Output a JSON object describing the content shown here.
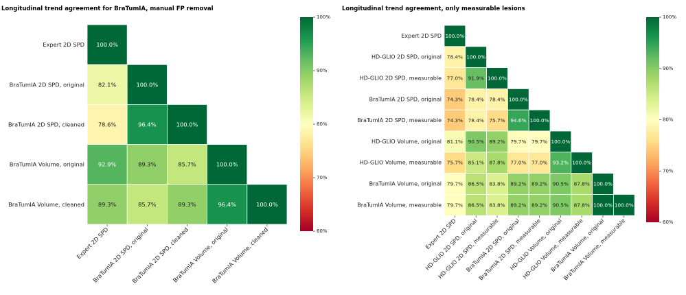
{
  "chart_data": [
    {
      "type": "heatmap",
      "title": "Longitudinal trend agreement for BraTumIA, manual FP removal",
      "labels": [
        "Expert 2D SPD",
        "BraTumIA 2D SPD, original",
        "BraTumIA 2D SPD, cleaned",
        "BraTumIA Volume, original",
        "BraTumIA Volume, cleaned"
      ],
      "values": [
        [
          100.0
        ],
        [
          82.1,
          100.0
        ],
        [
          78.6,
          96.4,
          100.0
        ],
        [
          92.9,
          89.3,
          85.7,
          100.0
        ],
        [
          89.3,
          85.7,
          89.3,
          96.4,
          100.0
        ]
      ],
      "vmin": 60,
      "vmax": 100,
      "colorbar_ticks": [
        "60%",
        "70%",
        "80%",
        "90%",
        "100%"
      ],
      "colormap": "RdYlGn",
      "mask": "upper-triangle"
    },
    {
      "type": "heatmap",
      "title": "Longitudinal trend agreement, only measurable lesions",
      "labels": [
        "Expert 2D SPD",
        "HD-GLIO 2D SPD, original",
        "HD-GLIO 2D SPD, measurable",
        "BraTumIA 2D SPD, original",
        "BraTumIA 2D SPD, measurable",
        "HD-GLIO Volume, original",
        "HD-GLIO Volume, measurable",
        "BraTumIA Volume, original",
        "BraTumIA Volume, measurable"
      ],
      "values": [
        [
          100.0
        ],
        [
          78.4,
          100.0
        ],
        [
          77.0,
          91.9,
          100.0
        ],
        [
          74.3,
          78.4,
          78.4,
          100.0
        ],
        [
          74.3,
          78.4,
          75.7,
          94.6,
          100.0
        ],
        [
          81.1,
          90.5,
          89.2,
          79.7,
          79.7,
          100.0
        ],
        [
          75.7,
          85.1,
          87.8,
          77.0,
          77.0,
          93.2,
          100.0
        ],
        [
          79.7,
          86.5,
          83.8,
          89.2,
          89.2,
          90.5,
          87.8,
          100.0
        ],
        [
          79.7,
          86.5,
          83.8,
          89.2,
          89.2,
          90.5,
          87.8,
          100.0,
          100.0
        ]
      ],
      "vmin": 60,
      "vmax": 100,
      "colorbar_ticks": [
        "60%",
        "70%",
        "80%",
        "90%",
        "100%"
      ],
      "colormap": "RdYlGn",
      "mask": "upper-triangle"
    }
  ]
}
